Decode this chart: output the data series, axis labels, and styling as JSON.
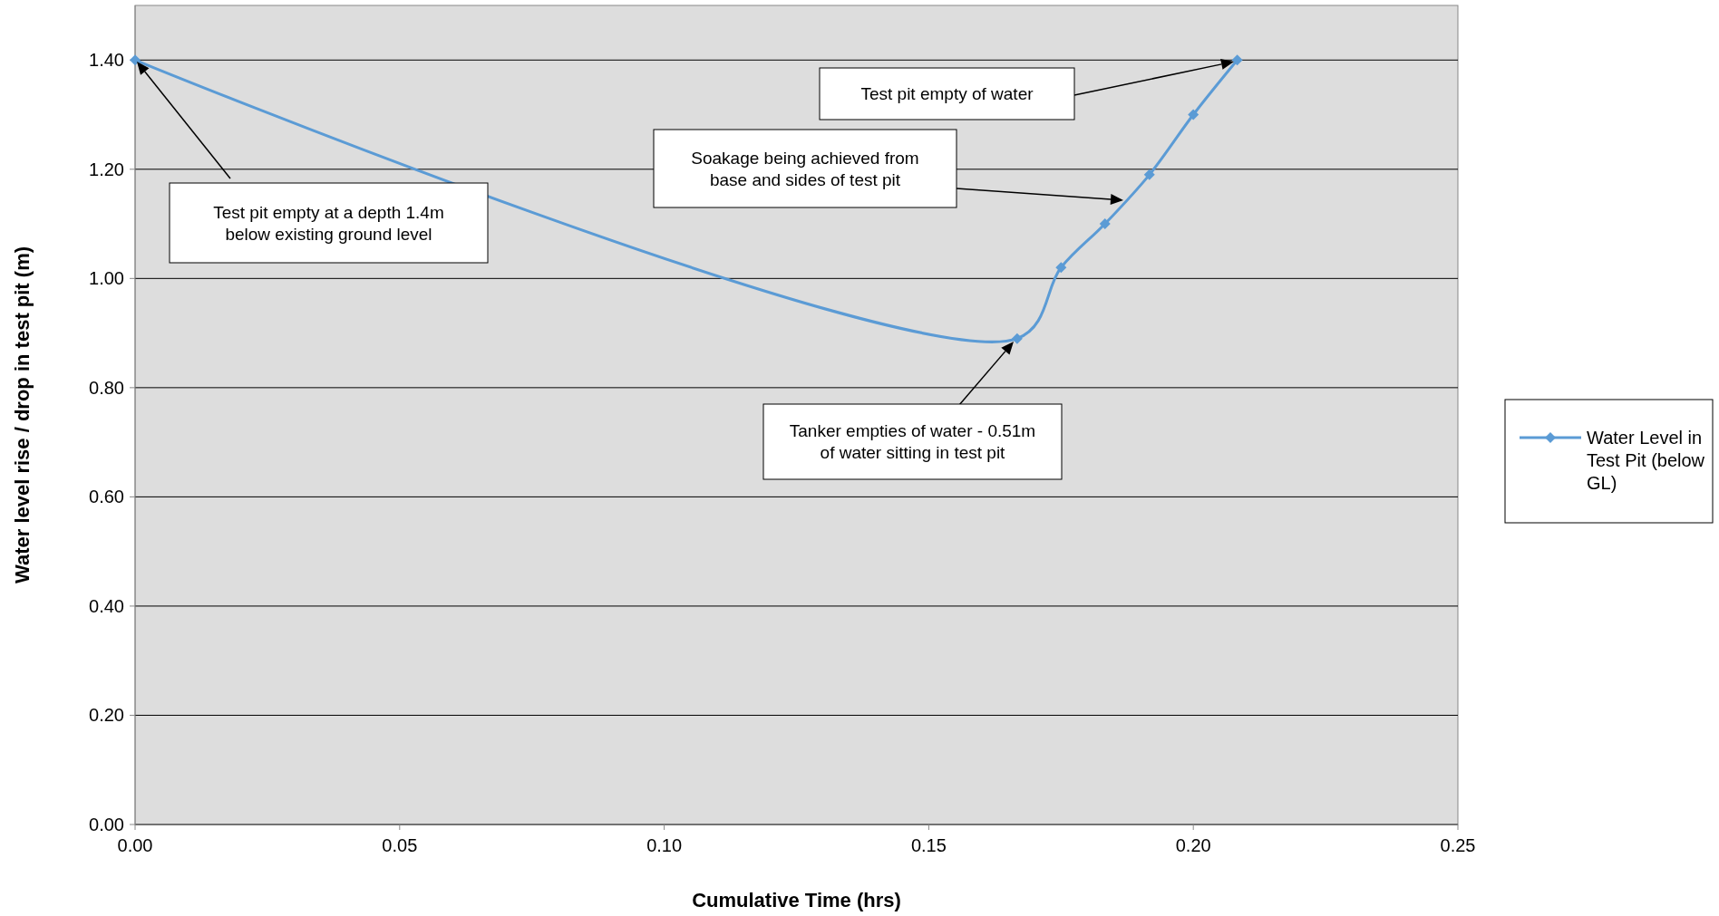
{
  "chart_data": {
    "type": "line",
    "xlabel": "Cumulative Time (hrs)",
    "ylabel": "Water level rise / drop in test pit (m)",
    "x": [
      0,
      0.1667,
      0.175,
      0.1833,
      0.1917,
      0.2,
      0.2083
    ],
    "series": [
      {
        "name": "Water Level in Test Pit (below GL)",
        "color": "#5b9bd5",
        "values": [
          1.4,
          0.89,
          1.02,
          1.1,
          1.19,
          1.3,
          1.4
        ]
      }
    ],
    "xlim": [
      0,
      0.25
    ],
    "xticks": [
      {
        "value": 0,
        "label": "0.00"
      },
      {
        "value": 0.05,
        "label": "0.05"
      },
      {
        "value": 0.1,
        "label": "0.10"
      },
      {
        "value": 0.15,
        "label": "0.15"
      },
      {
        "value": 0.2,
        "label": "0.20"
      },
      {
        "value": 0.25,
        "label": "0.25"
      }
    ],
    "ylim": [
      0,
      1.5
    ],
    "yticks": [
      {
        "value": 0,
        "label": "0.00"
      },
      {
        "value": 0.2,
        "label": "0.20"
      },
      {
        "value": 0.4,
        "label": "0.40"
      },
      {
        "value": 0.6,
        "label": "0.60"
      },
      {
        "value": 0.8,
        "label": "0.80"
      },
      {
        "value": 1,
        "label": "1.00"
      },
      {
        "value": 1.2,
        "label": "1.20"
      },
      {
        "value": 1.4,
        "label": "1.40"
      }
    ],
    "grid": "y",
    "legend": "right",
    "marker": "diamond",
    "line_style": "solid",
    "annotations": [
      "Test pit empty at a depth 1.4m\nbelow existing ground level",
      "Test pit empty of water",
      "Soakage being achieved from\nbase and sides of test pit",
      "Tanker empties of water - 0.51m\nof water sitting in test pit"
    ]
  }
}
